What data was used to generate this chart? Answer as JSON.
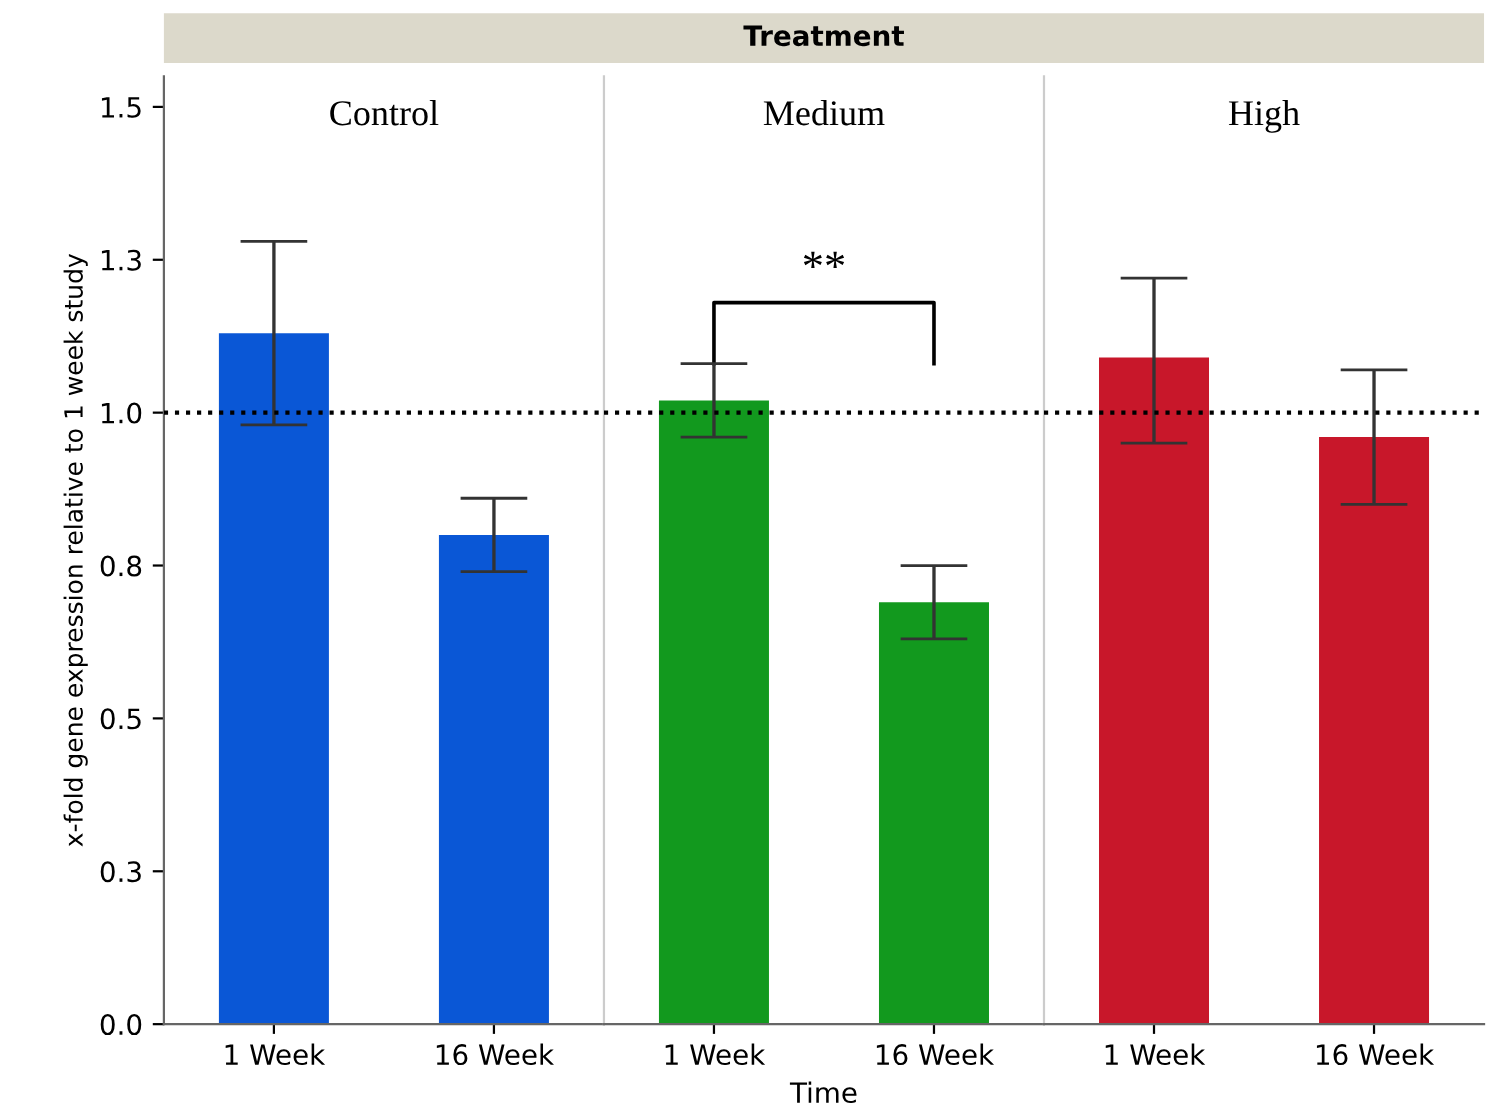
{
  "chart_data": [
    {
      "type": "bar",
      "title": "Control",
      "ylabel": "x-fold gene expression relative to 1 week study",
      "annotations": [
        "Treatment"
      ],
      "categories": [
        "1 Week",
        "16 Week"
      ],
      "values": [
        1.13,
        0.8
      ],
      "errors": [
        [
          0.98,
          1.28
        ],
        [
          0.74,
          0.86
        ]
      ],
      "color": "#0a57d6",
      "ylim": [
        0,
        1.55
      ],
      "yticks": [
        {
          "value": 0,
          "label": "0.0"
        },
        {
          "value": 0.25,
          "label": "0.3"
        },
        {
          "value": 0.5,
          "label": "0.5"
        },
        {
          "value": 0.75,
          "label": "0.8"
        },
        {
          "value": 1.0,
          "label": "1.0"
        },
        {
          "value": 1.25,
          "label": "1.3"
        },
        {
          "value": 1.5,
          "label": "1.5"
        }
      ],
      "ref_lines": [
        {
          "axis": "y",
          "value": 1.0,
          "line_style": "dotted"
        }
      ]
    },
    {
      "type": "bar",
      "title": "Medium",
      "xlabel": "Time",
      "annotations": [
        "**"
      ],
      "categories": [
        "1 Week",
        "16 Week"
      ],
      "values": [
        1.02,
        0.69
      ],
      "errors": [
        [
          0.96,
          1.08
        ],
        [
          0.63,
          0.75
        ]
      ],
      "color": "#12991e",
      "ylim": [
        0,
        1.55
      ],
      "tick_labels": "x",
      "ref_lines": [
        {
          "axis": "y",
          "value": 1.0,
          "line_style": "dotted"
        }
      ]
    },
    {
      "type": "bar",
      "title": "High",
      "categories": [
        "1 Week",
        "16 Week"
      ],
      "values": [
        1.09,
        0.96
      ],
      "errors": [
        [
          0.95,
          1.22
        ],
        [
          0.85,
          1.07
        ]
      ],
      "color": "#c8172a",
      "ylim": [
        0,
        1.55
      ],
      "tick_labels": "x",
      "ref_lines": [
        {
          "axis": "y",
          "value": 1.0,
          "line_style": "dotted"
        }
      ]
    }
  ]
}
